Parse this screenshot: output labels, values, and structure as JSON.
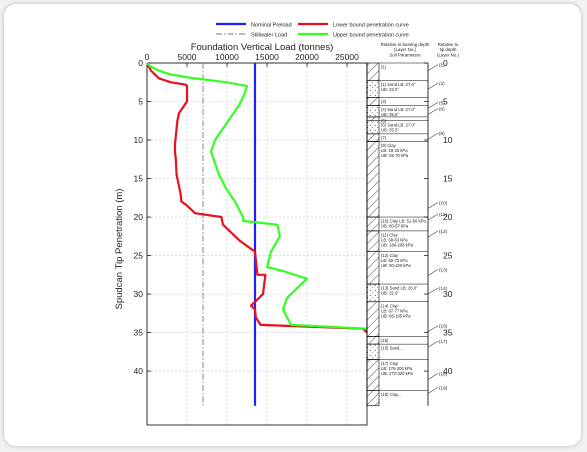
{
  "chart_data": {
    "type": "line",
    "title": "Foundation Vertical Load (tonnes)",
    "xlabel": "Foundation Vertical Load (tonnes)",
    "ylabel": "Spudcan Tip Penetration (m)",
    "xlim": [
      0,
      27500
    ],
    "ylim": [
      0,
      47
    ],
    "xticks": [
      0,
      5000,
      10000,
      15000,
      20000,
      25000
    ],
    "yticks": [
      0,
      5,
      10,
      15,
      20,
      25,
      30,
      35,
      40
    ],
    "grid": true,
    "legend_position": "top",
    "series": [
      {
        "name": "Nominal Preload",
        "color": "#1f1fff",
        "style": "solid",
        "x": [
          13500,
          13500
        ],
        "y": [
          0,
          44.5
        ]
      },
      {
        "name": "Stillwater Load",
        "color": "#7a7a7a",
        "style": "dash-dot",
        "x": [
          7000,
          7000
        ],
        "y": [
          0,
          44.5
        ]
      },
      {
        "name": "Lower bound penetration curve",
        "color": "#e8101a",
        "style": "solid",
        "x": [
          0,
          500,
          1500,
          3000,
          4800,
          5000,
          5000,
          4000,
          3800,
          3700,
          3600,
          3500,
          3500,
          3600,
          3700,
          4000,
          4200,
          4300,
          5000,
          6000,
          9300,
          9500,
          10000,
          11500,
          13500,
          13800,
          14800,
          14500,
          13500,
          13000,
          13500,
          13600,
          14200,
          27000,
          27500
        ],
        "y": [
          0,
          1,
          2,
          2.5,
          2.8,
          3.0,
          5.0,
          6.5,
          7.5,
          8.5,
          9.5,
          10.5,
          11.5,
          12.5,
          14.5,
          16.0,
          17.0,
          18.0,
          18.5,
          19.5,
          20.0,
          21.0,
          21.5,
          23.0,
          24.5,
          27.5,
          27.5,
          30.0,
          31.0,
          31.5,
          32.0,
          33.0,
          34.0,
          34.5,
          35.0
        ]
      },
      {
        "name": "Upper bound penetration curve",
        "color": "#33ff22",
        "style": "solid",
        "x": [
          0,
          500,
          1500,
          3000,
          6000,
          10000,
          12500,
          12200,
          11500,
          10500,
          9500,
          8500,
          8000,
          8500,
          9000,
          10000,
          11000,
          11500,
          12000,
          12000,
          16300,
          16600,
          15500,
          15000,
          17000,
          20000,
          17500,
          17000,
          17500,
          18000,
          27500
        ],
        "y": [
          0,
          0.5,
          1.0,
          1.5,
          2.0,
          2.5,
          3.0,
          4.0,
          5.5,
          7.0,
          8.5,
          10.0,
          11.5,
          13.0,
          14.5,
          16.5,
          18.0,
          19.0,
          20.0,
          20.5,
          21.0,
          22.5,
          24.5,
          26.5,
          27.0,
          28.0,
          30.5,
          32.0,
          33.0,
          34.0,
          34.5
        ]
      }
    ]
  },
  "soil_column": {
    "header_left": "Relative to bearing depth\n(Layer No.)\nSoil Parameters",
    "header_right": "Relative to\ntip depth\n(Layer No.)",
    "layers": [
      {
        "label": "(1)",
        "type": "clay",
        "top": 0,
        "bottom": 2.3
      },
      {
        "label": "(1) Sand  LB: 27.0°\nUB: 33.0°",
        "type": "sand",
        "top": 2.3,
        "bottom": 4.5
      },
      {
        "label": "(3)",
        "type": "clay",
        "top": 4.5,
        "bottom": 5.5
      },
      {
        "label": "(4) Sand  LB: 27.0°\nUB: 35.5°",
        "type": "sand",
        "top": 5.5,
        "bottom": 7.0
      },
      {
        "label": "(5)",
        "type": "clay",
        "top": 7.0,
        "bottom": 7.5
      },
      {
        "label": "(6) Sand  LB: 27.0°\nUB: 35.5°",
        "type": "sand",
        "top": 7.5,
        "bottom": 9.2
      },
      {
        "label": "(7)",
        "type": "clay",
        "top": 9.2,
        "bottom": 10.2
      },
      {
        "label": "(9) Clay\nLB: 18-33 kPa\nUB: 55-70 kPa",
        "type": "clay",
        "top": 10.2,
        "bottom": 20.0
      },
      {
        "label": "(10) Clay  LB: 51-56 kPa\nUB: 80-87 kPa",
        "type": "clay",
        "top": 20.0,
        "bottom": 21.8
      },
      {
        "label": "(11) Clay\nLB: 58-63 kPa\nUB: 184-208 kPa",
        "type": "clay",
        "top": 21.8,
        "bottom": 24.5
      },
      {
        "label": "(12) Clay\nLB: 62-73 kPa\nUB: 90-100 kPa",
        "type": "clay",
        "top": 24.5,
        "bottom": 28.7
      },
      {
        "label": "(13) Sand  LB: 26.0°\nUB: 32.0°",
        "type": "sand",
        "top": 28.7,
        "bottom": 31.0
      },
      {
        "label": "(14) Clay\nLB: 67-77 kPa\nUB: 95-105 kPa",
        "type": "clay",
        "top": 31.0,
        "bottom": 35.5
      },
      {
        "label": "(15)",
        "type": "clay",
        "top": 35.5,
        "bottom": 36.5
      },
      {
        "label": "(16) Sand...",
        "type": "sand",
        "top": 36.5,
        "bottom": 38.5
      },
      {
        "label": "(17) Clay\nLB: 176-200 kPa\nUB: 272-320 kPa",
        "type": "clay",
        "top": 38.5,
        "bottom": 42.5
      },
      {
        "label": "(18) Clay...",
        "type": "clay",
        "top": 42.5,
        "bottom": 44.5
      }
    ],
    "right_markers": [
      {
        "label": "(1)",
        "depth": 0.6
      },
      {
        "label": "(3)",
        "depth": 3.0
      },
      {
        "label": "(5)",
        "depth": 5.5
      },
      {
        "label": "(6)",
        "depth": 6.3
      },
      {
        "label": "(8)",
        "depth": 9.5
      },
      {
        "label": "(10)",
        "depth": 18.5
      },
      {
        "label": "(11)",
        "depth": 20.0
      },
      {
        "label": "(12)",
        "depth": 22.2
      },
      {
        "label": "(13)",
        "depth": 27.2
      },
      {
        "label": "(14)",
        "depth": 29.6
      },
      {
        "label": "(16)",
        "depth": 34.5
      },
      {
        "label": "(17)",
        "depth": 36.5
      },
      {
        "label": "(18)",
        "depth": 40.7
      },
      {
        "label": "(19)",
        "depth": 42.5
      }
    ]
  }
}
